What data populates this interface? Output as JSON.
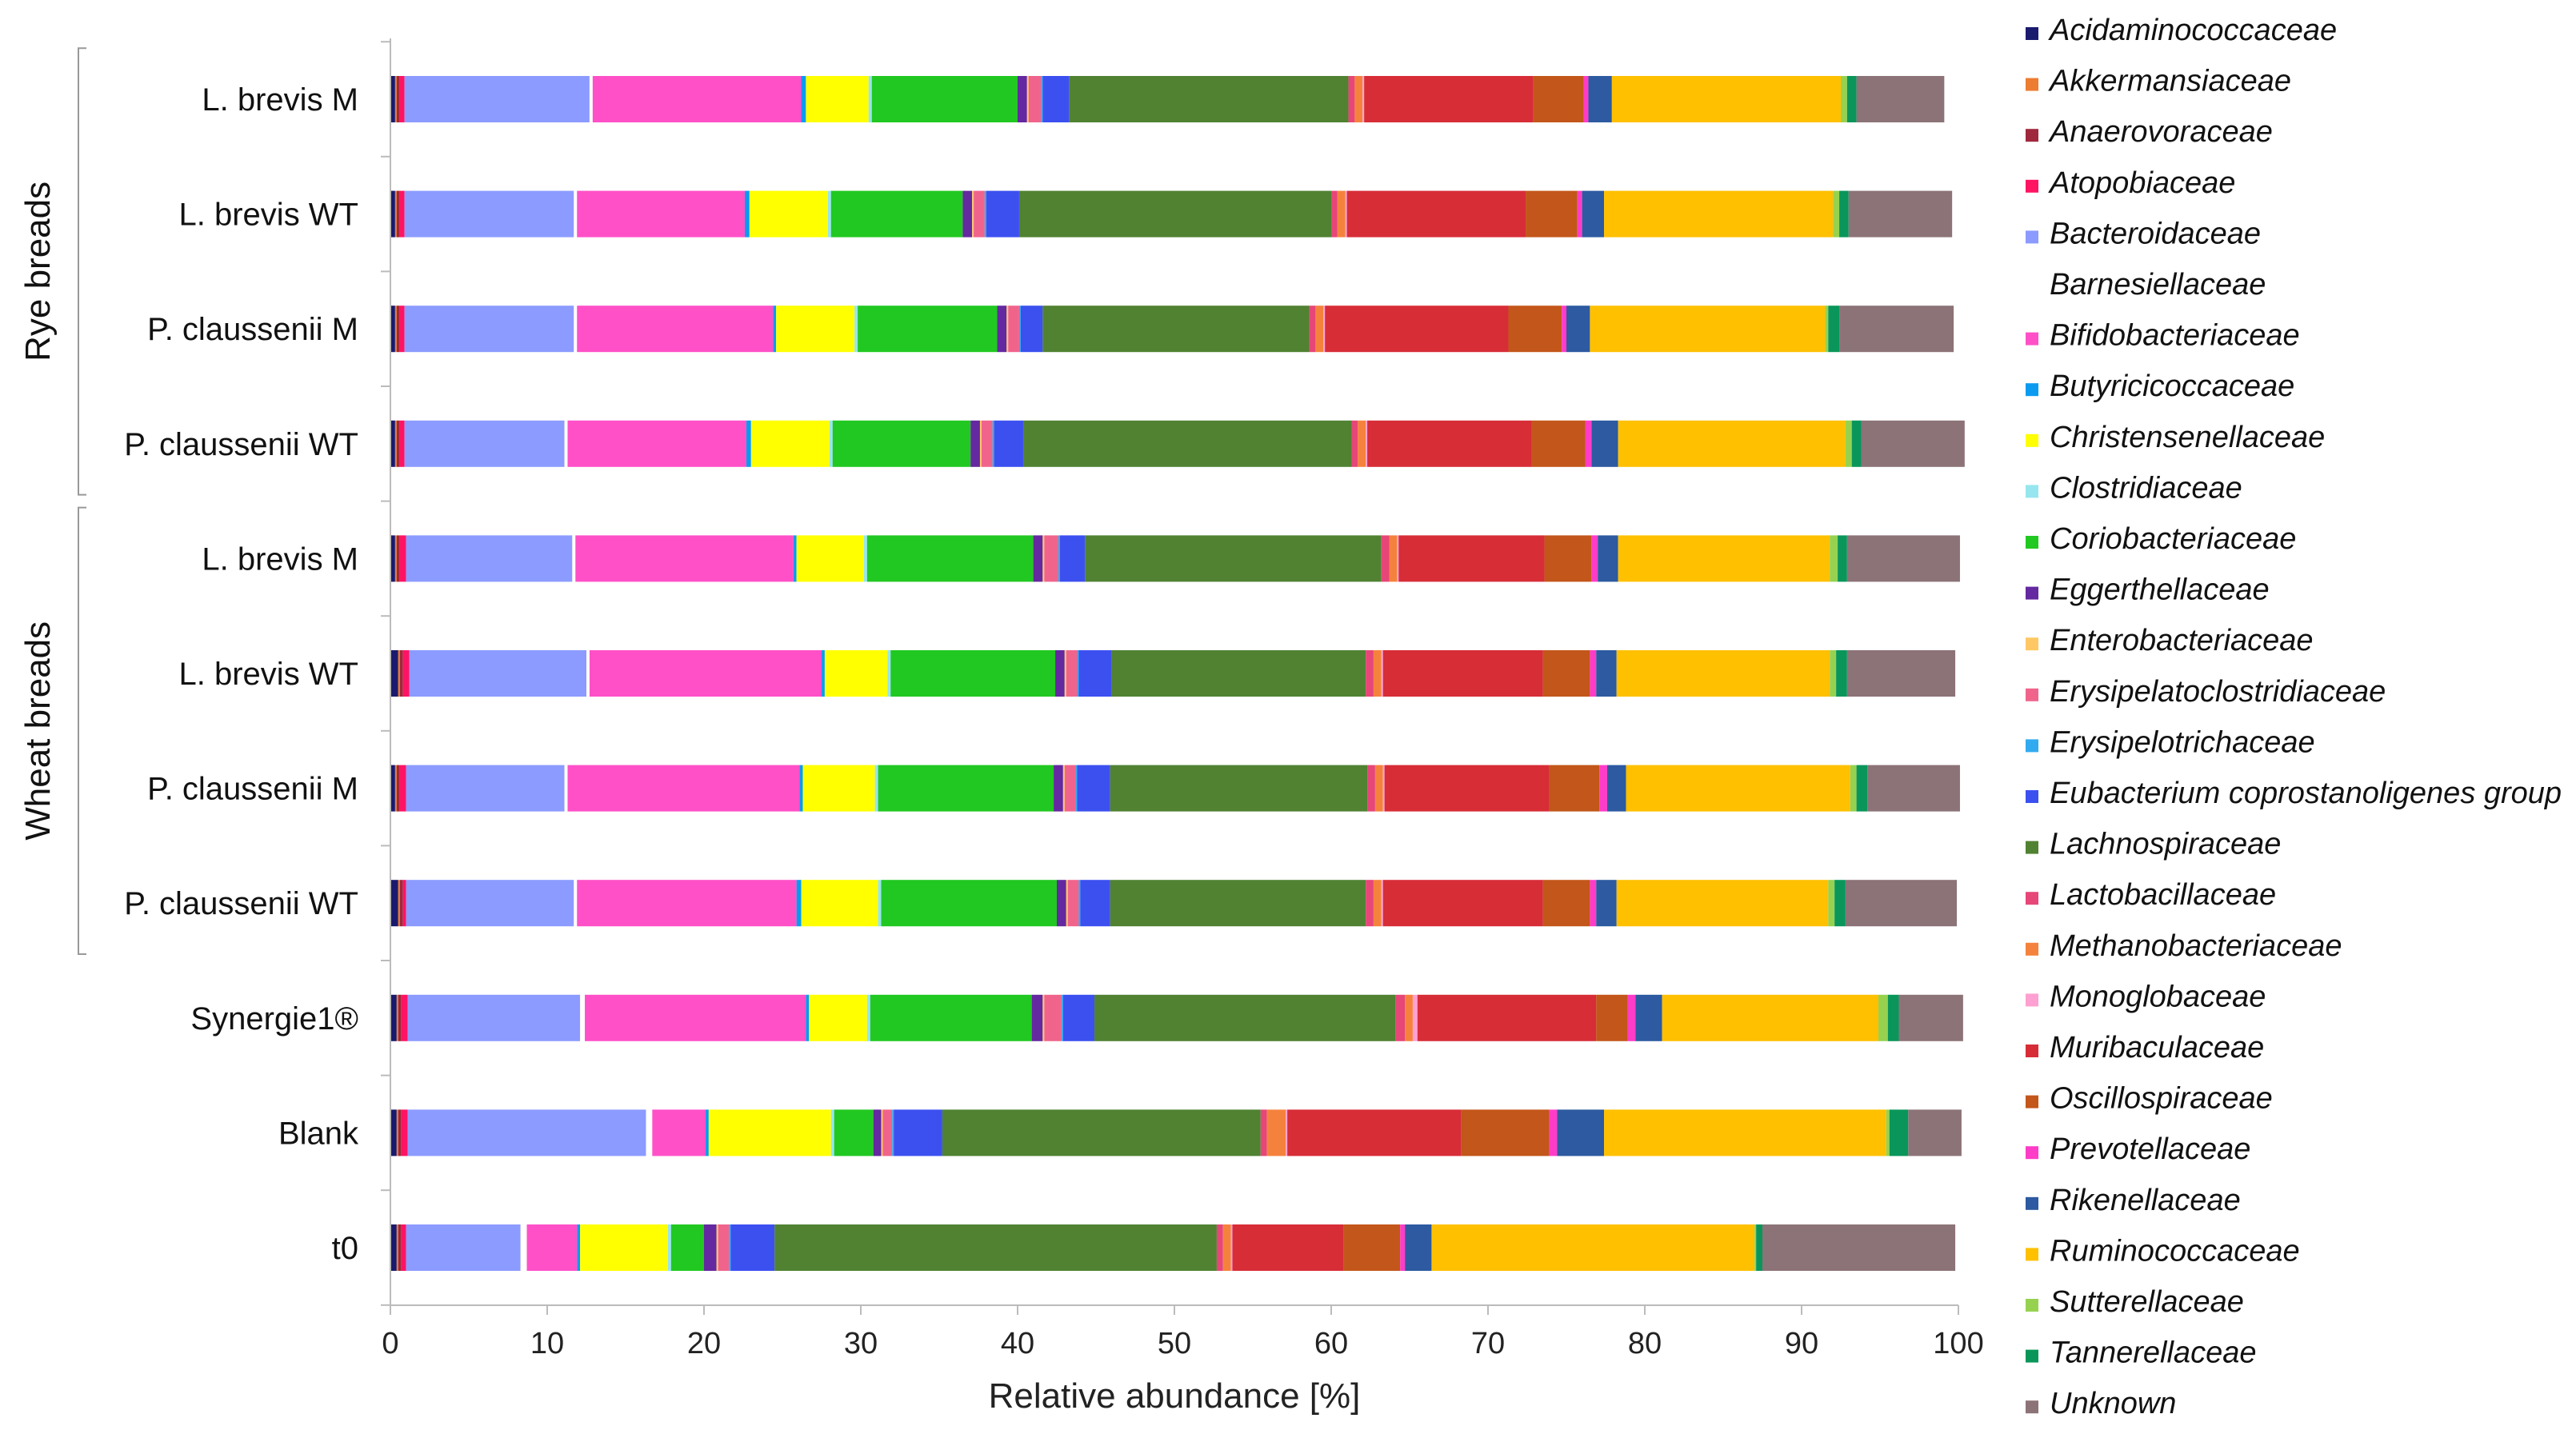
{
  "chart_data": {
    "type": "bar",
    "orientation": "horizontal",
    "stacked": true,
    "xlabel": "Relative abundance [%]",
    "xlim": [
      0,
      100
    ],
    "xticks": [
      0,
      10,
      20,
      30,
      40,
      50,
      60,
      70,
      80,
      90,
      100
    ],
    "legend_position": "right",
    "grid": false,
    "groups": [
      {
        "label": "Rye breads",
        "rows": [
          0,
          3
        ]
      },
      {
        "label": "Wheat breads",
        "rows": [
          4,
          7
        ]
      }
    ],
    "categories": [
      "L. brevis M",
      "L. brevis WT",
      "P. claussenii M",
      "P. claussenii WT",
      "L. brevis M",
      "L. brevis WT",
      "P. claussenii M",
      "P. claussenii WT",
      "Synergie1®",
      "Blank",
      "t0"
    ],
    "series": [
      {
        "name": "Acidaminococcaceae",
        "color": "#1a1a6e",
        "values": [
          0.3,
          0.3,
          0.3,
          0.3,
          0.3,
          0.5,
          0.3,
          0.5,
          0.4,
          0.4,
          0.4
        ]
      },
      {
        "name": "Akkermansiaceae",
        "color": "#ed7d31",
        "values": [
          0.1,
          0.1,
          0.1,
          0.1,
          0.1,
          0.1,
          0.1,
          0.1,
          0.1,
          0.1,
          0.1
        ]
      },
      {
        "name": "Anaerovoraceae",
        "color": "#a0283c",
        "values": [
          0.2,
          0.2,
          0.2,
          0.2,
          0.2,
          0.2,
          0.2,
          0.2,
          0.2,
          0.2,
          0.2
        ]
      },
      {
        "name": "Atopobiaceae",
        "color": "#ff1464",
        "values": [
          0.3,
          0.3,
          0.3,
          0.3,
          0.4,
          0.4,
          0.4,
          0.2,
          0.4,
          0.4,
          0.3
        ]
      },
      {
        "name": "Bacteroidaceae",
        "color": "#8c9bff",
        "values": [
          11.8,
          10.8,
          10.8,
          10.2,
          10.6,
          11.3,
          10.1,
          10.7,
          11.0,
          15.2,
          7.3
        ]
      },
      {
        "name": "Barnesiellaceae",
        "color": "#ffffff",
        "values": [
          0.2,
          0.2,
          0.2,
          0.2,
          0.2,
          0.2,
          0.2,
          0.2,
          0.3,
          0.4,
          0.4
        ]
      },
      {
        "name": "Bifidobacteriaceae",
        "color": "#ff50c8",
        "values": [
          13.3,
          10.7,
          12.5,
          11.4,
          13.9,
          14.8,
          14.8,
          14.0,
          14.1,
          3.4,
          3.2
        ]
      },
      {
        "name": "Butyricicoccaceae",
        "color": "#0a9bf0",
        "values": [
          0.3,
          0.3,
          0.2,
          0.3,
          0.2,
          0.2,
          0.2,
          0.3,
          0.2,
          0.2,
          0.2
        ]
      },
      {
        "name": "Christensenellaceae",
        "color": "#ffff00",
        "values": [
          4.0,
          5.0,
          5.0,
          5.0,
          4.3,
          4.0,
          4.6,
          4.9,
          3.7,
          7.8,
          5.6
        ]
      },
      {
        "name": "Clostridiaceae",
        "color": "#96e6f0",
        "values": [
          0.2,
          0.2,
          0.2,
          0.2,
          0.2,
          0.2,
          0.2,
          0.2,
          0.2,
          0.2,
          0.2
        ]
      },
      {
        "name": "Coriobacteriaceae",
        "color": "#21c821",
        "values": [
          9.3,
          8.4,
          8.9,
          8.8,
          10.6,
          10.5,
          11.2,
          11.2,
          10.3,
          2.5,
          2.1
        ]
      },
      {
        "name": "Eggerthellaceae",
        "color": "#6428a0",
        "values": [
          0.6,
          0.6,
          0.6,
          0.6,
          0.6,
          0.6,
          0.6,
          0.6,
          0.7,
          0.5,
          0.8
        ]
      },
      {
        "name": "Enterobacteriaceae",
        "color": "#ffc864",
        "values": [
          0.1,
          0.1,
          0.1,
          0.1,
          0.1,
          0.1,
          0.1,
          0.1,
          0.1,
          0.1,
          0.1
        ]
      },
      {
        "name": "Erysipelatoclostridiaceae",
        "color": "#f0648c",
        "values": [
          0.8,
          0.7,
          0.7,
          0.7,
          0.9,
          0.7,
          0.7,
          0.7,
          1.1,
          0.6,
          0.7
        ]
      },
      {
        "name": "Erysipelotrichaceae",
        "color": "#32aaf0",
        "values": [
          0.1,
          0.1,
          0.1,
          0.1,
          0.1,
          0.1,
          0.1,
          0.1,
          0.1,
          0.1,
          0.1
        ]
      },
      {
        "name": "Eubacterium coprostanoligenes group",
        "color": "#3c50f0",
        "values": [
          1.7,
          2.1,
          1.4,
          1.9,
          1.6,
          2.1,
          2.1,
          1.9,
          2.0,
          3.1,
          2.8
        ]
      },
      {
        "name": "Lachnospiraceae",
        "color": "#508232",
        "values": [
          17.8,
          19.9,
          17.0,
          20.9,
          18.9,
          16.2,
          16.4,
          16.3,
          19.2,
          20.3,
          28.2
        ]
      },
      {
        "name": "Lactobacillaceae",
        "color": "#e64678",
        "values": [
          0.4,
          0.4,
          0.4,
          0.4,
          0.5,
          0.5,
          0.5,
          0.5,
          0.6,
          0.4,
          0.4
        ]
      },
      {
        "name": "Methanobacteriaceae",
        "color": "#f5823c",
        "values": [
          0.5,
          0.5,
          0.5,
          0.5,
          0.5,
          0.5,
          0.5,
          0.5,
          0.5,
          1.2,
          0.5
        ]
      },
      {
        "name": "Monoglobaceae",
        "color": "#ffa0d2",
        "values": [
          0.1,
          0.1,
          0.1,
          0.1,
          0.1,
          0.1,
          0.1,
          0.1,
          0.3,
          0.1,
          0.1
        ]
      },
      {
        "name": "Muribaculaceae",
        "color": "#d72d37",
        "values": [
          10.8,
          11.4,
          11.7,
          10.5,
          9.3,
          10.2,
          10.5,
          10.2,
          11.4,
          11.1,
          7.1
        ]
      },
      {
        "name": "Oscillospiraceae",
        "color": "#c3561a",
        "values": [
          3.2,
          3.3,
          3.4,
          3.4,
          3.0,
          3.0,
          3.2,
          3.0,
          2.0,
          5.6,
          3.6
        ]
      },
      {
        "name": "Prevotellaceae",
        "color": "#ff3cc8",
        "values": [
          0.3,
          0.3,
          0.3,
          0.4,
          0.4,
          0.4,
          0.5,
          0.4,
          0.5,
          0.5,
          0.3
        ]
      },
      {
        "name": "Rikenellaceae",
        "color": "#2d5aa0",
        "values": [
          1.5,
          1.4,
          1.5,
          1.7,
          1.3,
          1.3,
          1.2,
          1.3,
          1.7,
          3.0,
          1.7
        ]
      },
      {
        "name": "Ruminococcaceae",
        "color": "#ffc000",
        "values": [
          14.6,
          14.6,
          15.0,
          14.5,
          13.5,
          13.6,
          14.3,
          13.5,
          13.8,
          18.0,
          20.6
        ]
      },
      {
        "name": "Sutterellaceae",
        "color": "#96d250",
        "values": [
          0.4,
          0.4,
          0.2,
          0.4,
          0.5,
          0.4,
          0.4,
          0.4,
          0.6,
          0.2,
          0.1
        ]
      },
      {
        "name": "Tannerellaceae",
        "color": "#0a965a",
        "values": [
          0.6,
          0.6,
          0.7,
          0.6,
          0.6,
          0.7,
          0.7,
          0.7,
          0.7,
          1.2,
          0.4
        ]
      },
      {
        "name": "Unknown",
        "color": "#8c7378",
        "values": [
          5.6,
          6.6,
          7.3,
          6.6,
          7.2,
          6.9,
          5.9,
          7.1,
          4.1,
          3.4,
          12.3
        ]
      }
    ]
  }
}
